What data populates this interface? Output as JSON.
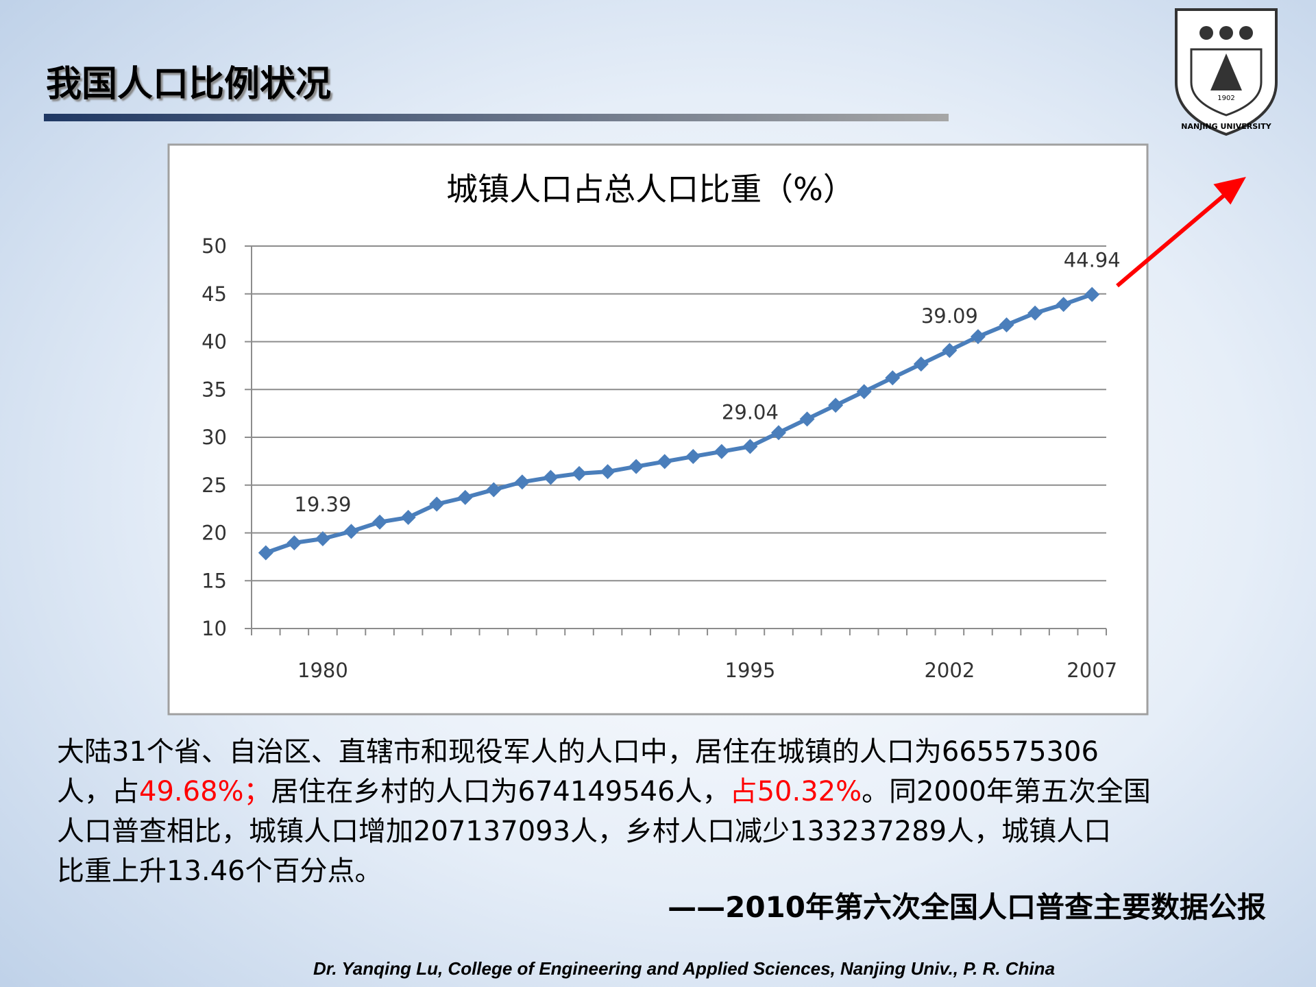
{
  "header": {
    "title": "我国人口比例状况"
  },
  "logo": {
    "name": "NANJING UNIVERSITY",
    "year": "1902"
  },
  "chart_data": {
    "type": "line",
    "title": "城镇人口占总人口比重（%）",
    "categories": [
      null,
      null,
      "1980",
      null,
      null,
      null,
      null,
      null,
      null,
      null,
      null,
      null,
      null,
      null,
      null,
      null,
      null,
      "1995",
      null,
      null,
      null,
      null,
      null,
      null,
      "2002",
      null,
      null,
      null,
      null,
      "2007"
    ],
    "values": [
      17.92,
      18.96,
      19.39,
      20.16,
      21.13,
      21.62,
      23.01,
      23.71,
      24.52,
      25.32,
      25.81,
      26.21,
      26.41,
      26.94,
      27.46,
      27.99,
      28.51,
      29.04,
      30.48,
      31.91,
      33.35,
      34.78,
      36.22,
      37.66,
      39.09,
      40.53,
      41.76,
      42.99,
      43.9,
      44.94
    ],
    "value_labels": [
      null,
      null,
      "19.39",
      null,
      null,
      null,
      null,
      null,
      null,
      null,
      null,
      null,
      null,
      null,
      null,
      null,
      null,
      "29.04",
      null,
      null,
      null,
      null,
      null,
      null,
      "39.09",
      null,
      null,
      null,
      null,
      "44.94"
    ],
    "color": "#4a7ebb",
    "ylim": [
      10,
      50
    ],
    "yticks": [
      10,
      15,
      20,
      25,
      30,
      35,
      40,
      45,
      50
    ],
    "grid": true
  },
  "body": [
    [
      {
        "text": "大陆31个省、自治区、直辖市和现役军人的人口中，居住在城镇的人口为665575306",
        "color": "#000000"
      }
    ],
    [
      {
        "text": "人，占",
        "color": "#000000"
      },
      {
        "text": "49.68%；",
        "color": "#ff0000"
      },
      {
        "text": "居住在乡村的人口为674149546人，",
        "color": "#000000"
      },
      {
        "text": "占50.32%",
        "color": "#ff0000"
      },
      {
        "text": "。同2000年第五次全国",
        "color": "#000000"
      }
    ],
    [
      {
        "text": "人口普查相比，城镇人口增加207137093人，乡村人口减少133237289人，城镇人口",
        "color": "#000000"
      }
    ],
    [
      {
        "text": "比重上升13.46个百分点。",
        "color": "#000000"
      }
    ]
  ],
  "source": "——2010年第六次全国人口普查主要数据公报",
  "footer": "Dr. Yanqing Lu, College of Engineering and Applied Sciences, Nanjing Univ., P. R. China"
}
